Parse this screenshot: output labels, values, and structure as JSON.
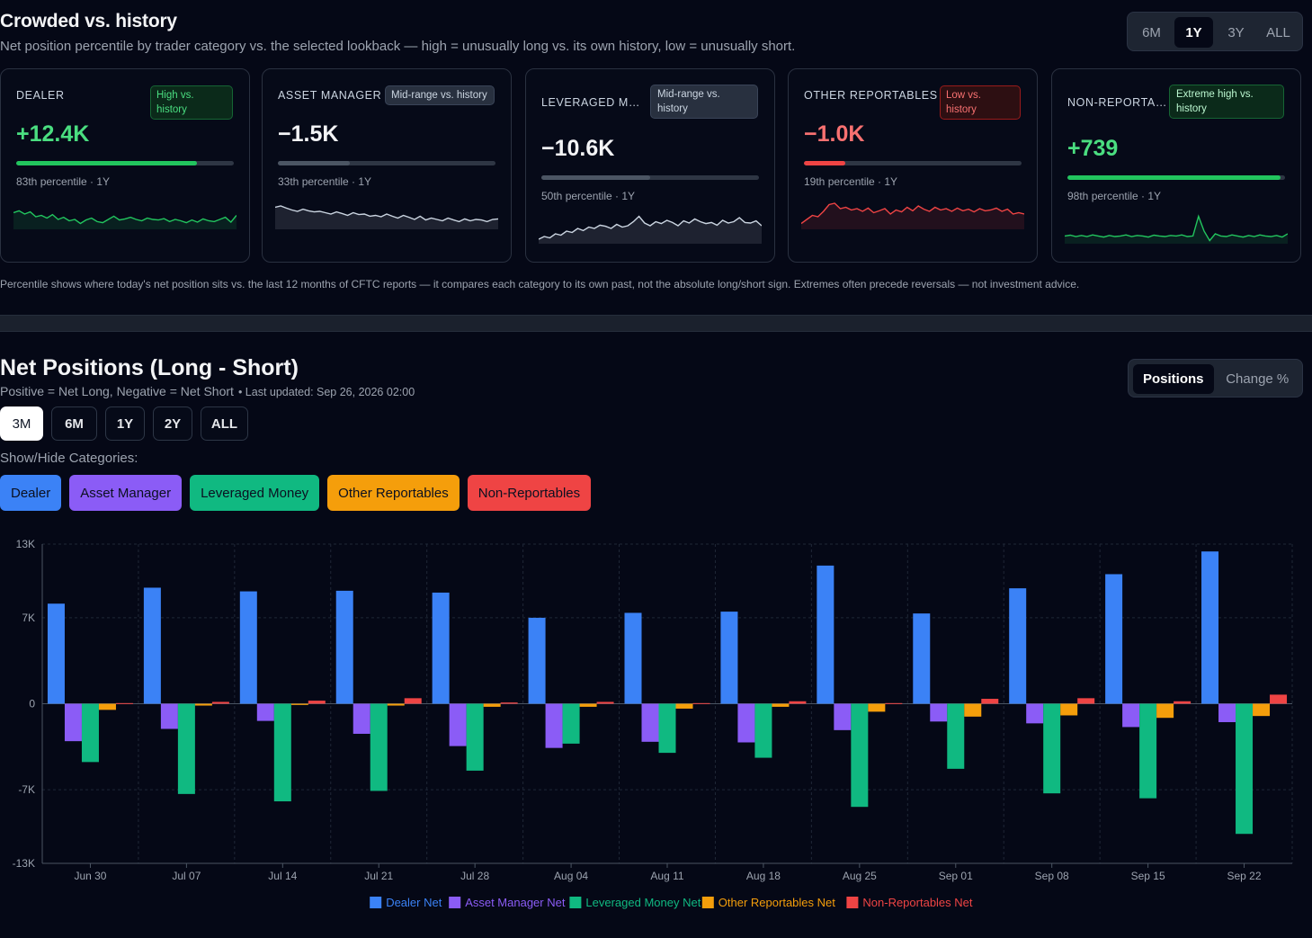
{
  "crowded": {
    "title": "Crowded vs. history",
    "subtitle": "Net position percentile by trader category vs. the selected lookback — high = unusually long vs. its own history, low = unusually short.",
    "lookback_options": [
      "6M",
      "1Y",
      "3Y",
      "ALL"
    ],
    "lookback_selected": "1Y",
    "cards": [
      {
        "name": "DEALER",
        "badge": "High vs. history",
        "badge_type": "good",
        "value": "+12.4K",
        "value_style": "pos",
        "percentile": 83,
        "percentile_text": "83th percentile · 1Y",
        "color": "#22c55e",
        "spark": [
          0.55,
          0.62,
          0.5,
          0.58,
          0.4,
          0.45,
          0.35,
          0.48,
          0.3,
          0.38,
          0.25,
          0.3,
          0.15,
          0.28,
          0.35,
          0.22,
          0.18,
          0.3,
          0.42,
          0.28,
          0.32,
          0.38,
          0.3,
          0.25,
          0.35,
          0.3,
          0.28,
          0.33,
          0.22,
          0.3,
          0.25,
          0.18,
          0.28,
          0.2,
          0.32,
          0.25,
          0.22,
          0.3,
          0.38,
          0.2,
          0.45
        ]
      },
      {
        "name": "ASSET MANAGER",
        "badge": "Mid-range vs. history",
        "badge_type": "mid",
        "value": "−1.5K",
        "value_style": "neg-white",
        "percentile": 33,
        "percentile_text": "33th percentile · 1Y",
        "color": "#cbd5e1",
        "spark": [
          0.75,
          0.8,
          0.72,
          0.65,
          0.6,
          0.68,
          0.62,
          0.58,
          0.6,
          0.55,
          0.5,
          0.58,
          0.52,
          0.45,
          0.55,
          0.48,
          0.5,
          0.42,
          0.45,
          0.4,
          0.5,
          0.42,
          0.35,
          0.45,
          0.38,
          0.3,
          0.42,
          0.28,
          0.35,
          0.3,
          0.25,
          0.35,
          0.28,
          0.22,
          0.32,
          0.25,
          0.3,
          0.28,
          0.22,
          0.3,
          0.32
        ]
      },
      {
        "name": "LEVERAGED MONEY",
        "badge": "Mid-range vs. history",
        "badge_type": "mid",
        "value": "−10.6K",
        "value_style": "neg-white",
        "percentile": 50,
        "percentile_text": "50th percentile · 1Y",
        "color": "#cbd5e1",
        "spark": [
          0.1,
          0.2,
          0.15,
          0.3,
          0.25,
          0.4,
          0.35,
          0.5,
          0.42,
          0.55,
          0.5,
          0.62,
          0.58,
          0.5,
          0.65,
          0.55,
          0.6,
          0.75,
          0.95,
          0.7,
          0.6,
          0.75,
          0.68,
          0.8,
          0.72,
          0.6,
          0.78,
          0.7,
          0.85,
          0.75,
          0.68,
          0.72,
          0.62,
          0.8,
          0.7,
          0.75,
          0.9,
          0.72,
          0.7,
          0.78,
          0.6
        ]
      },
      {
        "name": "OTHER REPORTABLES",
        "badge": "Low vs. history",
        "badge_type": "bad",
        "value": "−1.0K",
        "value_style": "neg-red",
        "percentile": 19,
        "percentile_text": "19th percentile · 1Y",
        "color": "#ef4444",
        "spark": [
          0.15,
          0.3,
          0.45,
          0.4,
          0.6,
          0.85,
          0.9,
          0.7,
          0.75,
          0.65,
          0.7,
          0.6,
          0.72,
          0.55,
          0.62,
          0.7,
          0.5,
          0.65,
          0.58,
          0.75,
          0.62,
          0.8,
          0.68,
          0.6,
          0.75,
          0.65,
          0.7,
          0.6,
          0.72,
          0.62,
          0.68,
          0.58,
          0.7,
          0.62,
          0.65,
          0.72,
          0.6,
          0.68,
          0.5,
          0.55,
          0.5
        ]
      },
      {
        "name": "NON-REPORTABLES",
        "badge": "Extreme high vs. history",
        "badge_type": "ext",
        "value": "+739",
        "value_style": "pos",
        "percentile": 98,
        "percentile_text": "98th percentile · 1Y",
        "color": "#22c55e",
        "spark": [
          0.22,
          0.25,
          0.2,
          0.24,
          0.2,
          0.26,
          0.22,
          0.18,
          0.24,
          0.2,
          0.22,
          0.26,
          0.2,
          0.24,
          0.22,
          0.18,
          0.25,
          0.22,
          0.2,
          0.24,
          0.22,
          0.26,
          0.2,
          0.22,
          0.95,
          0.4,
          0.05,
          0.3,
          0.22,
          0.2,
          0.26,
          0.22,
          0.18,
          0.24,
          0.2,
          0.26,
          0.22,
          0.2,
          0.24,
          0.18,
          0.3
        ]
      }
    ],
    "footnote": "Percentile shows where today's net position sits vs. the last 12 months of CFTC reports — it compares each category to its own past, not the absolute long/short sign. Extremes often precede reversals — not investment advice."
  },
  "net_positions": {
    "title": "Net Positions (Long - Short)",
    "subtitle": "Positive = Net Long, Negative = Net Short",
    "updated": "• Last updated: Sep 26, 2026 02:00",
    "mode_options": [
      "Positions",
      "Change %"
    ],
    "mode_selected": "Positions",
    "ranges": [
      "3M",
      "6M",
      "1Y",
      "2Y",
      "ALL"
    ],
    "range_selected": "3M",
    "showhide_label": "Show/Hide Categories:",
    "categories": [
      {
        "label": "Dealer",
        "color": "#3b82f6"
      },
      {
        "label": "Asset Manager",
        "color": "#8b5cf6"
      },
      {
        "label": "Leveraged Money",
        "color": "#10b981"
      },
      {
        "label": "Other Reportables",
        "color": "#f59e0b"
      },
      {
        "label": "Non-Reportables",
        "color": "#ef4444"
      }
    ]
  },
  "chart_data": {
    "type": "bar",
    "categories": [
      "Jun 30",
      "Jul 07",
      "Jul 14",
      "Jul 21",
      "Jul 28",
      "Aug 04",
      "Aug 11",
      "Aug 18",
      "Aug 25",
      "Sep 01",
      "Sep 08",
      "Sep 15",
      "Sep 22"
    ],
    "series": [
      {
        "name": "Dealer Net",
        "color": "#3b82f6",
        "values": [
          8150,
          9450,
          9150,
          9200,
          9050,
          7000,
          7400,
          7500,
          11250,
          7350,
          9400,
          10550,
          12400
        ]
      },
      {
        "name": "Asset Manager Net",
        "color": "#8b5cf6",
        "values": [
          -3050,
          -2050,
          -1400,
          -2450,
          -3450,
          -3600,
          -3100,
          -3150,
          -2150,
          -1450,
          -1600,
          -1900,
          -1500
        ]
      },
      {
        "name": "Leveraged Money Net",
        "color": "#10b981",
        "values": [
          -4750,
          -7350,
          -7950,
          -7100,
          -5450,
          -3250,
          -4000,
          -4400,
          -8400,
          -5300,
          -7300,
          -7700,
          -10600
        ]
      },
      {
        "name": "Other Reportables Net",
        "color": "#f59e0b",
        "values": [
          -500,
          -150,
          -100,
          -150,
          -250,
          -250,
          -400,
          -250,
          -650,
          -1050,
          -950,
          -1150,
          -1000
        ]
      },
      {
        "name": "Non-Reportables Net",
        "color": "#ef4444",
        "values": [
          50,
          150,
          250,
          450,
          100,
          150,
          50,
          200,
          50,
          400,
          450,
          200,
          739
        ]
      }
    ],
    "yticks": [
      "13K",
      "7K",
      "0",
      "-7K",
      "-13K"
    ],
    "ylim": [
      -13000,
      13000
    ],
    "grid": true,
    "legend_position": "bottom"
  }
}
